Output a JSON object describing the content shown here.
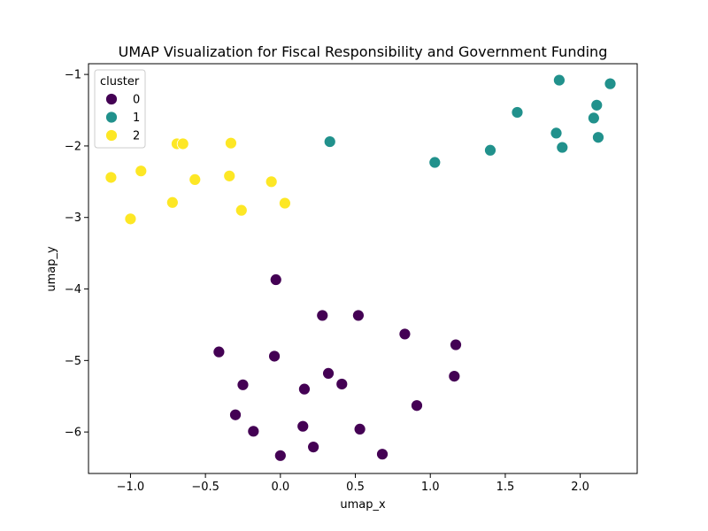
{
  "chart_data": {
    "type": "scatter",
    "title": "UMAP Visualization for Fiscal Responsibility and Government Funding",
    "xlabel": "umap_x",
    "ylabel": "umap_y",
    "xlim": [
      -1.28,
      2.38
    ],
    "ylim": [
      -6.58,
      -0.85
    ],
    "xticks": [
      -1.0,
      -0.5,
      0.0,
      0.5,
      1.0,
      1.5,
      2.0
    ],
    "xtick_labels": [
      "−1.0",
      "−0.5",
      "0.0",
      "0.5",
      "1.0",
      "1.5",
      "2.0"
    ],
    "yticks": [
      -6,
      -5,
      -4,
      -3,
      -2,
      -1
    ],
    "ytick_labels": [
      "−6",
      "−5",
      "−4",
      "−3",
      "−2",
      "−1"
    ],
    "grid": false,
    "legend": {
      "title": "cluster",
      "placement": "top-left"
    },
    "series": [
      {
        "name": "0",
        "color": "#440154",
        "points": [
          [
            -0.03,
            -3.87
          ],
          [
            0.28,
            -4.37
          ],
          [
            0.52,
            -4.37
          ],
          [
            0.83,
            -4.63
          ],
          [
            1.17,
            -4.78
          ],
          [
            -0.41,
            -4.88
          ],
          [
            -0.04,
            -4.94
          ],
          [
            0.32,
            -5.18
          ],
          [
            0.41,
            -5.33
          ],
          [
            1.16,
            -5.22
          ],
          [
            -0.25,
            -5.34
          ],
          [
            0.16,
            -5.4
          ],
          [
            0.91,
            -5.63
          ],
          [
            -0.3,
            -5.76
          ],
          [
            -0.18,
            -5.99
          ],
          [
            0.15,
            -5.92
          ],
          [
            0.53,
            -5.96
          ],
          [
            0.22,
            -6.21
          ],
          [
            0.0,
            -6.33
          ],
          [
            0.68,
            -6.31
          ]
        ]
      },
      {
        "name": "1",
        "color": "#21918c",
        "points": [
          [
            1.86,
            -1.08
          ],
          [
            2.2,
            -1.13
          ],
          [
            2.11,
            -1.43
          ],
          [
            1.58,
            -1.53
          ],
          [
            2.09,
            -1.61
          ],
          [
            1.84,
            -1.82
          ],
          [
            2.12,
            -1.88
          ],
          [
            0.33,
            -1.94
          ],
          [
            1.88,
            -2.02
          ],
          [
            1.4,
            -2.06
          ],
          [
            1.03,
            -2.23
          ]
        ]
      },
      {
        "name": "2",
        "color": "#fde725",
        "points": [
          [
            -0.69,
            -1.97
          ],
          [
            -0.65,
            -1.97
          ],
          [
            -0.33,
            -1.96
          ],
          [
            -0.93,
            -2.35
          ],
          [
            -1.13,
            -2.44
          ],
          [
            -0.34,
            -2.42
          ],
          [
            -0.57,
            -2.47
          ],
          [
            -0.06,
            -2.5
          ],
          [
            -0.72,
            -2.79
          ],
          [
            0.03,
            -2.8
          ],
          [
            -0.26,
            -2.9
          ],
          [
            -1.0,
            -3.02
          ]
        ]
      }
    ]
  }
}
